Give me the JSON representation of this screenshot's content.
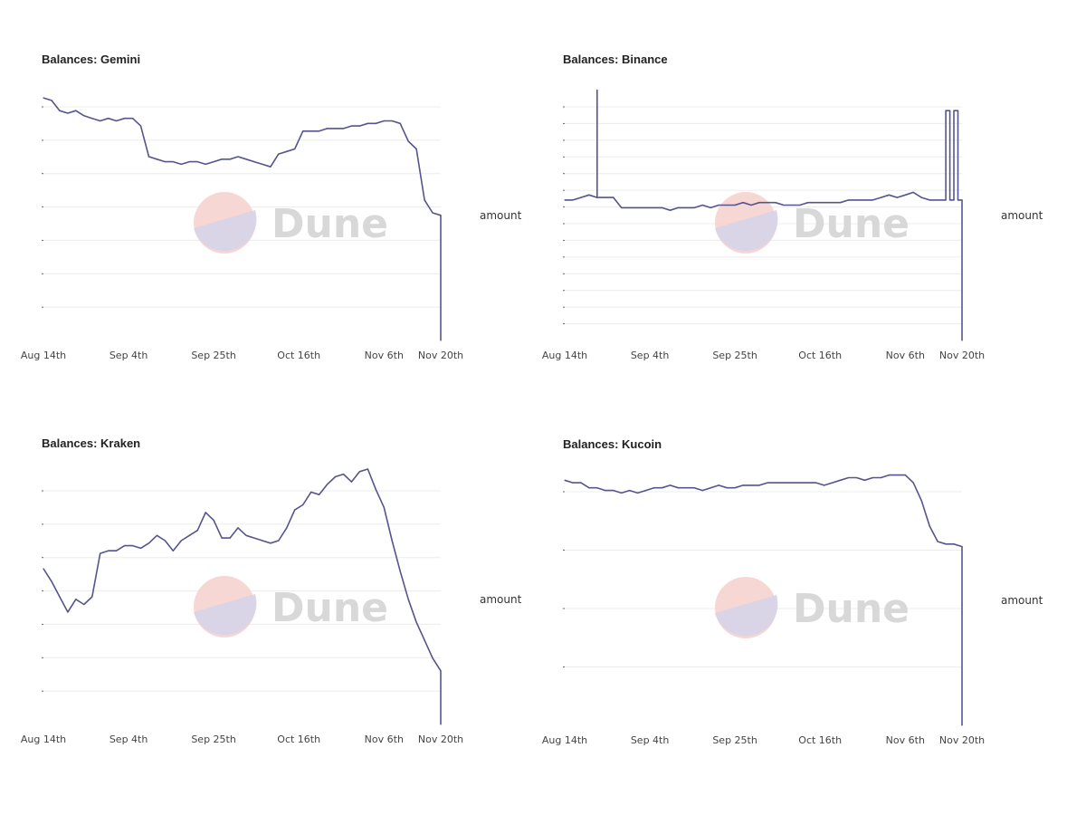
{
  "chart_data": [
    {
      "type": "line",
      "title": "Balances: Gemini",
      "watermark": "Dune",
      "legend": "amount",
      "legend_position": "right",
      "grid": true,
      "y_tick_count": 7,
      "x_ticks": [
        "Aug 14th",
        "Sep 4th",
        "Sep 25th",
        "Oct 16th",
        "Nov 6th",
        "Nov 20th"
      ],
      "x": [
        "Aug 14",
        "Aug 16",
        "Aug 18",
        "Aug 20",
        "Aug 22",
        "Aug 24",
        "Aug 26",
        "Aug 28",
        "Aug 30",
        "Sep 1",
        "Sep 3",
        "Sep 5",
        "Sep 7",
        "Sep 9",
        "Sep 11",
        "Sep 13",
        "Sep 15",
        "Sep 17",
        "Sep 19",
        "Sep 21",
        "Sep 23",
        "Sep 25",
        "Sep 27",
        "Sep 29",
        "Oct 1",
        "Oct 3",
        "Oct 5",
        "Oct 7",
        "Oct 9",
        "Oct 11",
        "Oct 13",
        "Oct 15",
        "Oct 17",
        "Oct 19",
        "Oct 21",
        "Oct 23",
        "Oct 25",
        "Oct 27",
        "Oct 29",
        "Oct 31",
        "Nov 2",
        "Nov 4",
        "Nov 6",
        "Nov 8",
        "Nov 10",
        "Nov 12",
        "Nov 14",
        "Nov 16",
        "Nov 18",
        "Nov 20",
        "Nov 20"
      ],
      "series": [
        {
          "name": "amount",
          "values": [
            0.95,
            0.94,
            0.9,
            0.89,
            0.9,
            0.88,
            0.87,
            0.86,
            0.87,
            0.86,
            0.87,
            0.87,
            0.84,
            0.72,
            0.71,
            0.7,
            0.7,
            0.69,
            0.7,
            0.7,
            0.69,
            0.7,
            0.71,
            0.71,
            0.72,
            0.71,
            0.7,
            0.69,
            0.68,
            0.73,
            0.74,
            0.75,
            0.82,
            0.82,
            0.82,
            0.83,
            0.83,
            0.83,
            0.84,
            0.84,
            0.85,
            0.85,
            0.86,
            0.86,
            0.85,
            0.78,
            0.75,
            0.55,
            0.5,
            0.49,
            0.0
          ]
        }
      ],
      "ylim": [
        0,
        1
      ]
    },
    {
      "type": "line",
      "title": "Balances: Binance",
      "watermark": "Dune",
      "legend": "amount",
      "legend_position": "right",
      "grid": true,
      "y_tick_count": 14,
      "x_ticks": [
        "Aug 14th",
        "Sep 4th",
        "Sep 25th",
        "Oct 16th",
        "Nov 6th",
        "Nov 20th"
      ],
      "x": [
        "Aug 14",
        "Aug 16",
        "Aug 18",
        "Aug 20",
        "Aug 22",
        "Aug 22",
        "Aug 22",
        "Aug 24",
        "Aug 26",
        "Aug 28",
        "Aug 30",
        "Sep 1",
        "Sep 3",
        "Sep 5",
        "Sep 7",
        "Sep 9",
        "Sep 11",
        "Sep 13",
        "Sep 15",
        "Sep 17",
        "Sep 19",
        "Sep 21",
        "Sep 23",
        "Sep 25",
        "Sep 27",
        "Sep 29",
        "Oct 1",
        "Oct 3",
        "Oct 5",
        "Oct 7",
        "Oct 9",
        "Oct 11",
        "Oct 13",
        "Oct 15",
        "Oct 17",
        "Oct 19",
        "Oct 21",
        "Oct 23",
        "Oct 25",
        "Oct 27",
        "Oct 29",
        "Oct 31",
        "Nov 2",
        "Nov 4",
        "Nov 6",
        "Nov 8",
        "Nov 10",
        "Nov 12",
        "Nov 14",
        "Nov 16",
        "Nov 16",
        "Nov 17",
        "Nov 17",
        "Nov 18",
        "Nov 18",
        "Nov 19",
        "Nov 19",
        "Nov 20",
        "Nov 20"
      ],
      "series": [
        {
          "name": "amount",
          "values": [
            0.55,
            0.55,
            0.56,
            0.57,
            0.56,
            0.98,
            0.56,
            0.56,
            0.56,
            0.52,
            0.52,
            0.52,
            0.52,
            0.52,
            0.52,
            0.51,
            0.52,
            0.52,
            0.52,
            0.53,
            0.52,
            0.53,
            0.53,
            0.53,
            0.54,
            0.53,
            0.54,
            0.54,
            0.54,
            0.53,
            0.53,
            0.53,
            0.54,
            0.54,
            0.54,
            0.54,
            0.54,
            0.55,
            0.55,
            0.55,
            0.55,
            0.56,
            0.57,
            0.56,
            0.57,
            0.58,
            0.56,
            0.55,
            0.55,
            0.55,
            0.9,
            0.9,
            0.55,
            0.55,
            0.9,
            0.9,
            0.55,
            0.55,
            0.0
          ]
        }
      ],
      "ylim": [
        0,
        1
      ]
    },
    {
      "type": "line",
      "title": "Balances: Kraken",
      "watermark": "Dune",
      "legend": "amount",
      "legend_position": "right",
      "grid": true,
      "y_tick_count": 7,
      "x_ticks": [
        "Aug 14th",
        "Sep 4th",
        "Sep 25th",
        "Oct 16th",
        "Nov 6th",
        "Nov 20th"
      ],
      "x": [
        "Aug 14",
        "Aug 16",
        "Aug 18",
        "Aug 20",
        "Aug 22",
        "Aug 24",
        "Aug 26",
        "Aug 28",
        "Aug 30",
        "Sep 1",
        "Sep 3",
        "Sep 5",
        "Sep 7",
        "Sep 9",
        "Sep 11",
        "Sep 13",
        "Sep 15",
        "Sep 17",
        "Sep 19",
        "Sep 21",
        "Sep 23",
        "Sep 25",
        "Sep 27",
        "Sep 29",
        "Oct 1",
        "Oct 3",
        "Oct 5",
        "Oct 7",
        "Oct 9",
        "Oct 11",
        "Oct 13",
        "Oct 15",
        "Oct 17",
        "Oct 19",
        "Oct 21",
        "Oct 23",
        "Oct 25",
        "Oct 27",
        "Oct 29",
        "Oct 31",
        "Nov 2",
        "Nov 4",
        "Nov 6",
        "Nov 8",
        "Nov 10",
        "Nov 12",
        "Nov 14",
        "Nov 16",
        "Nov 18",
        "Nov 20",
        "Nov 20"
      ],
      "series": [
        {
          "name": "amount",
          "values": [
            0.61,
            0.56,
            0.5,
            0.44,
            0.49,
            0.47,
            0.5,
            0.67,
            0.68,
            0.68,
            0.7,
            0.7,
            0.69,
            0.71,
            0.74,
            0.72,
            0.68,
            0.72,
            0.74,
            0.76,
            0.83,
            0.8,
            0.73,
            0.73,
            0.77,
            0.74,
            0.73,
            0.72,
            0.71,
            0.72,
            0.77,
            0.84,
            0.86,
            0.91,
            0.9,
            0.94,
            0.97,
            0.98,
            0.95,
            0.99,
            1.0,
            0.92,
            0.85,
            0.72,
            0.6,
            0.49,
            0.4,
            0.33,
            0.26,
            0.21,
            0.0
          ]
        }
      ],
      "ylim": [
        0,
        1
      ]
    },
    {
      "type": "line",
      "title": "Balances: Kucoin",
      "watermark": "Dune",
      "legend": "amount",
      "legend_position": "right",
      "grid": true,
      "y_tick_count": 4,
      "x_ticks": [
        "Aug 14th",
        "Sep 4th",
        "Sep 25th",
        "Oct 16th",
        "Nov 6th",
        "Nov 20th"
      ],
      "x": [
        "Aug 14",
        "Aug 16",
        "Aug 18",
        "Aug 20",
        "Aug 22",
        "Aug 24",
        "Aug 26",
        "Aug 28",
        "Aug 30",
        "Sep 1",
        "Sep 3",
        "Sep 5",
        "Sep 7",
        "Sep 9",
        "Sep 11",
        "Sep 13",
        "Sep 15",
        "Sep 17",
        "Sep 19",
        "Sep 21",
        "Sep 23",
        "Sep 25",
        "Sep 27",
        "Sep 29",
        "Oct 1",
        "Oct 3",
        "Oct 5",
        "Oct 7",
        "Oct 9",
        "Oct 11",
        "Oct 13",
        "Oct 15",
        "Oct 17",
        "Oct 19",
        "Oct 21",
        "Oct 23",
        "Oct 25",
        "Oct 27",
        "Oct 29",
        "Oct 31",
        "Nov 2",
        "Nov 4",
        "Nov 6",
        "Nov 8",
        "Nov 10",
        "Nov 12",
        "Nov 14",
        "Nov 16",
        "Nov 18",
        "Nov 20",
        "Nov 20"
      ],
      "series": [
        {
          "name": "amount",
          "values": [
            0.96,
            0.95,
            0.95,
            0.93,
            0.93,
            0.92,
            0.92,
            0.91,
            0.92,
            0.91,
            0.92,
            0.93,
            0.93,
            0.94,
            0.93,
            0.93,
            0.93,
            0.92,
            0.93,
            0.94,
            0.93,
            0.93,
            0.94,
            0.94,
            0.94,
            0.95,
            0.95,
            0.95,
            0.95,
            0.95,
            0.95,
            0.95,
            0.94,
            0.95,
            0.96,
            0.97,
            0.97,
            0.96,
            0.97,
            0.97,
            0.98,
            0.98,
            0.98,
            0.95,
            0.88,
            0.78,
            0.72,
            0.71,
            0.71,
            0.7,
            0.0
          ]
        }
      ],
      "ylim": [
        0,
        1
      ]
    }
  ]
}
